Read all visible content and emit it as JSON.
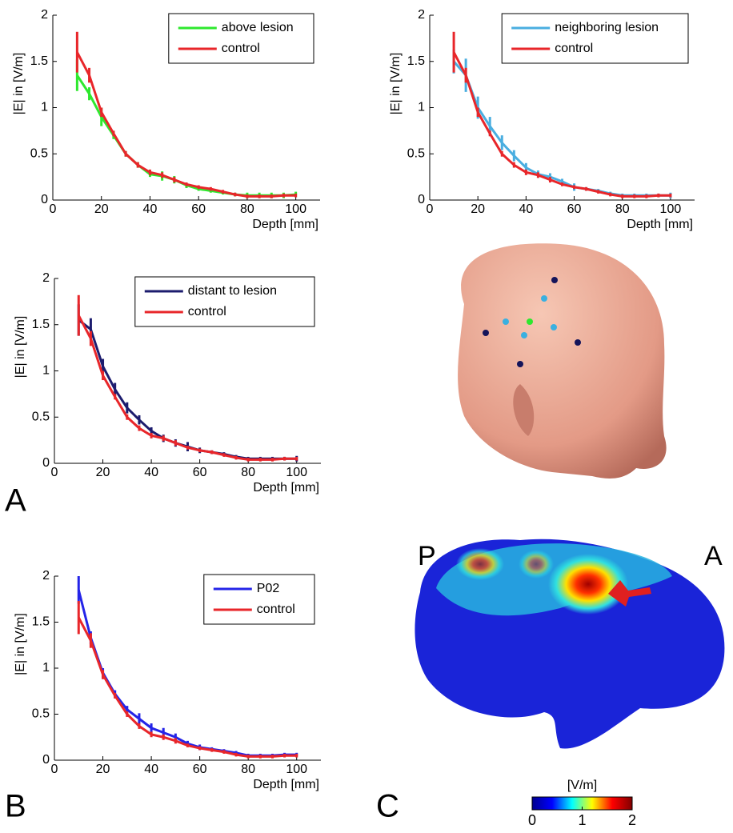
{
  "chart_data": [
    {
      "type": "line",
      "xlabel": "Depth [mm]",
      "ylabel": "|E| in [V/m]",
      "x": [
        10,
        15,
        20,
        25,
        30,
        35,
        40,
        45,
        50,
        55,
        60,
        65,
        70,
        75,
        80,
        85,
        90,
        95,
        100
      ],
      "xlim": [
        0,
        110
      ],
      "ylim": [
        0,
        2
      ],
      "xticks": [
        0,
        20,
        40,
        60,
        80,
        100
      ],
      "yticks": [
        0,
        0.5,
        1,
        1.5,
        2
      ],
      "legend": "top-right",
      "series": [
        {
          "name": "above lesion",
          "color": "#2ee82e",
          "values": [
            1.35,
            1.15,
            0.9,
            0.7,
            0.5,
            0.38,
            0.28,
            0.26,
            0.22,
            0.16,
            0.12,
            0.1,
            0.08,
            0.06,
            0.05,
            0.05,
            0.05,
            0.05,
            0.06
          ],
          "errors": [
            0.17,
            0.07,
            0.1,
            0.04,
            0.03,
            0.03,
            0.03,
            0.05,
            0.04,
            0.03,
            0.02,
            0.02,
            0.02,
            0.02,
            0.03,
            0.03,
            0.03,
            0.03,
            0.03
          ]
        },
        {
          "name": "control",
          "color": "#e8262a",
          "values": [
            1.6,
            1.35,
            0.95,
            0.72,
            0.5,
            0.38,
            0.3,
            0.27,
            0.22,
            0.17,
            0.14,
            0.12,
            0.09,
            0.06,
            0.04,
            0.04,
            0.04,
            0.05,
            0.05
          ],
          "errors": [
            0.22,
            0.08,
            0.05,
            0.03,
            0.03,
            0.03,
            0.03,
            0.03,
            0.03,
            0.02,
            0.02,
            0.02,
            0.02,
            0.02,
            0.02,
            0.02,
            0.02,
            0.02,
            0.02
          ]
        }
      ]
    },
    {
      "type": "line",
      "xlabel": "Depth [mm]",
      "ylabel": "|E| in [V/m]",
      "x": [
        10,
        15,
        20,
        25,
        30,
        35,
        40,
        45,
        50,
        55,
        60,
        65,
        70,
        75,
        80,
        85,
        90,
        95,
        100
      ],
      "xlim": [
        0,
        110
      ],
      "ylim": [
        0,
        2
      ],
      "xticks": [
        0,
        20,
        40,
        60,
        80,
        100
      ],
      "yticks": [
        0,
        0.5,
        1,
        1.5,
        2
      ],
      "legend": "top-right",
      "series": [
        {
          "name": "neighboring lesion",
          "color": "#4aaee0",
          "values": [
            1.5,
            1.35,
            1.0,
            0.8,
            0.62,
            0.48,
            0.35,
            0.28,
            0.25,
            0.2,
            0.14,
            0.12,
            0.1,
            0.07,
            0.05,
            0.05,
            0.05,
            0.05,
            0.05
          ],
          "errors": [
            0.13,
            0.18,
            0.12,
            0.1,
            0.08,
            0.06,
            0.05,
            0.04,
            0.04,
            0.03,
            0.04,
            0.02,
            0.02,
            0.02,
            0.02,
            0.02,
            0.02,
            0.02,
            0.03
          ]
        },
        {
          "name": "control",
          "color": "#e8262a",
          "values": [
            1.6,
            1.35,
            0.95,
            0.72,
            0.5,
            0.38,
            0.3,
            0.27,
            0.22,
            0.17,
            0.14,
            0.12,
            0.09,
            0.06,
            0.04,
            0.04,
            0.04,
            0.05,
            0.05
          ],
          "errors": [
            0.22,
            0.08,
            0.05,
            0.03,
            0.03,
            0.03,
            0.03,
            0.03,
            0.03,
            0.02,
            0.02,
            0.02,
            0.02,
            0.02,
            0.02,
            0.02,
            0.02,
            0.02,
            0.02
          ]
        }
      ]
    },
    {
      "type": "line",
      "xlabel": "Depth [mm]",
      "ylabel": "|E| in [V/m]",
      "x": [
        10,
        15,
        20,
        25,
        30,
        35,
        40,
        45,
        50,
        55,
        60,
        65,
        70,
        75,
        80,
        85,
        90,
        95,
        100
      ],
      "xlim": [
        0,
        110
      ],
      "ylim": [
        0,
        2
      ],
      "xticks": [
        0,
        20,
        40,
        60,
        80,
        100
      ],
      "yticks": [
        0,
        0.5,
        1,
        1.5,
        2
      ],
      "legend": "top-right",
      "series": [
        {
          "name": "distant to lesion",
          "color": "#1c1c6e",
          "values": [
            1.55,
            1.45,
            1.05,
            0.8,
            0.6,
            0.47,
            0.35,
            0.27,
            0.22,
            0.18,
            0.14,
            0.12,
            0.1,
            0.07,
            0.05,
            0.05,
            0.05,
            0.05,
            0.05
          ],
          "errors": [
            0.17,
            0.12,
            0.08,
            0.07,
            0.06,
            0.05,
            0.04,
            0.04,
            0.04,
            0.05,
            0.03,
            0.02,
            0.02,
            0.02,
            0.02,
            0.02,
            0.02,
            0.02,
            0.03
          ]
        },
        {
          "name": "control",
          "color": "#e8262a",
          "values": [
            1.6,
            1.35,
            0.95,
            0.72,
            0.5,
            0.38,
            0.3,
            0.27,
            0.22,
            0.17,
            0.14,
            0.12,
            0.09,
            0.06,
            0.04,
            0.04,
            0.04,
            0.05,
            0.05
          ],
          "errors": [
            0.22,
            0.08,
            0.05,
            0.03,
            0.03,
            0.03,
            0.03,
            0.03,
            0.03,
            0.02,
            0.02,
            0.02,
            0.02,
            0.02,
            0.02,
            0.02,
            0.02,
            0.02,
            0.02
          ]
        }
      ]
    },
    {
      "type": "line",
      "xlabel": "Depth [mm]",
      "ylabel": "|E| in [V/m]",
      "x": [
        10,
        15,
        20,
        25,
        30,
        35,
        40,
        45,
        50,
        55,
        60,
        65,
        70,
        75,
        80,
        85,
        90,
        95,
        100
      ],
      "xlim": [
        0,
        110
      ],
      "ylim": [
        0,
        2
      ],
      "xticks": [
        0,
        20,
        40,
        60,
        80,
        100
      ],
      "yticks": [
        0,
        0.5,
        1,
        1.5,
        2
      ],
      "legend": "top-right",
      "series": [
        {
          "name": "P02",
          "color": "#2424e8",
          "values": [
            1.85,
            1.33,
            0.95,
            0.72,
            0.55,
            0.45,
            0.35,
            0.3,
            0.25,
            0.18,
            0.14,
            0.12,
            0.1,
            0.08,
            0.05,
            0.05,
            0.05,
            0.06,
            0.06
          ],
          "errors": [
            0.15,
            0.07,
            0.05,
            0.04,
            0.04,
            0.06,
            0.05,
            0.05,
            0.04,
            0.03,
            0.03,
            0.02,
            0.02,
            0.02,
            0.02,
            0.02,
            0.02,
            0.02,
            0.02
          ]
        },
        {
          "name": "control",
          "color": "#e8262a",
          "values": [
            1.55,
            1.3,
            0.93,
            0.7,
            0.5,
            0.37,
            0.28,
            0.25,
            0.21,
            0.16,
            0.13,
            0.11,
            0.09,
            0.06,
            0.04,
            0.04,
            0.04,
            0.05,
            0.05
          ],
          "errors": [
            0.18,
            0.08,
            0.05,
            0.03,
            0.03,
            0.03,
            0.03,
            0.03,
            0.03,
            0.02,
            0.02,
            0.02,
            0.02,
            0.02,
            0.02,
            0.02,
            0.02,
            0.02,
            0.02
          ]
        }
      ]
    }
  ],
  "panel_labels": [
    "A",
    "B",
    "C"
  ],
  "brain_labels": [
    "P",
    "A"
  ],
  "colorbar": {
    "title": "[V/m]",
    "lim": [
      0,
      2
    ],
    "ticks": [
      0,
      1,
      2
    ],
    "colors": [
      "#00008f",
      "#0000ff",
      "#00ffff",
      "#ffff00",
      "#ff0000",
      "#800000"
    ]
  }
}
